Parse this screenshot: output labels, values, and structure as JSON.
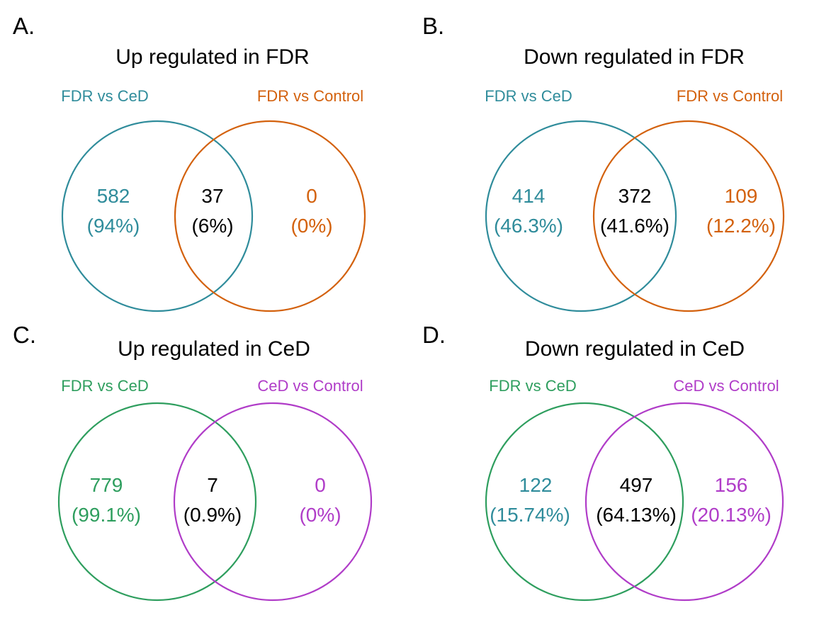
{
  "colors": {
    "teal": "#2f8c9b",
    "orange": "#d3610d",
    "green": "#2e9e5e",
    "purple": "#b03cc8",
    "black": "#000000"
  },
  "panels": [
    {
      "letter": "A.",
      "title": "Up regulated in FDR",
      "left_set": {
        "label": "FDR vs CeD",
        "color": "teal"
      },
      "right_set": {
        "label": "FDR vs Control",
        "color": "orange"
      },
      "regions": {
        "left": {
          "count": "582",
          "percent": "(94%)",
          "color": "teal"
        },
        "middle": {
          "count": "37",
          "percent": "(6%)",
          "color": "black"
        },
        "right": {
          "count": "0",
          "percent": "(0%)",
          "color": "orange"
        }
      }
    },
    {
      "letter": "B.",
      "title": "Down regulated in FDR",
      "left_set": {
        "label": "FDR vs CeD",
        "color": "teal"
      },
      "right_set": {
        "label": "FDR vs Control",
        "color": "orange"
      },
      "regions": {
        "left": {
          "count": "414",
          "percent": "(46.3%)",
          "color": "teal"
        },
        "middle": {
          "count": "372",
          "percent": "(41.6%)",
          "color": "black"
        },
        "right": {
          "count": "109",
          "percent": "(12.2%)",
          "color": "orange"
        }
      }
    },
    {
      "letter": "C.",
      "title": "Up regulated in CeD",
      "left_set": {
        "label": "FDR vs CeD",
        "color": "green"
      },
      "right_set": {
        "label": "CeD vs Control",
        "color": "purple"
      },
      "regions": {
        "left": {
          "count": "779",
          "percent": "(99.1%)",
          "color": "green"
        },
        "middle": {
          "count": "7",
          "percent": "(0.9%)",
          "color": "black"
        },
        "right": {
          "count": "0",
          "percent": "(0%)",
          "color": "purple"
        }
      }
    },
    {
      "letter": "D.",
      "title": "Down regulated in CeD",
      "left_set": {
        "label": "FDR vs CeD",
        "color": "green"
      },
      "right_set": {
        "label": "CeD vs Control",
        "color": "purple"
      },
      "regions": {
        "left": {
          "count": "122",
          "percent": "(15.74%)",
          "color": "teal"
        },
        "middle": {
          "count": "497",
          "percent": "(64.13%)",
          "color": "black"
        },
        "right": {
          "count": "156",
          "percent": "(20.13%)",
          "color": "purple"
        }
      }
    }
  ]
}
